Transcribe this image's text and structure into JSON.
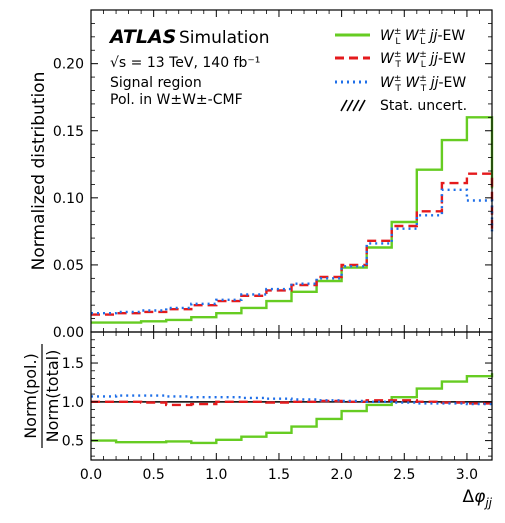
{
  "chart_data": [
    {
      "type": "line",
      "step": true,
      "ylabel": "Normalized distribution",
      "xlim": [
        0,
        3.2
      ],
      "ylim": [
        0,
        0.24
      ],
      "x_ticks": [
        "0.0",
        "0.5",
        "1.0",
        "1.5",
        "2.0",
        "2.5",
        "3.0"
      ],
      "y_ticks": [
        "0.00",
        "0.05",
        "0.10",
        "0.15",
        "0.20"
      ],
      "bin_edges": [
        0.0,
        0.2,
        0.4,
        0.6,
        0.8,
        1.0,
        1.2,
        1.4,
        1.6,
        1.8,
        2.0,
        2.2,
        2.4,
        2.6,
        2.8,
        3.0,
        3.2
      ],
      "annotation": {
        "experiment": "ATLAS",
        "label": "Simulation",
        "energy": "√s = 13 TeV, 140 fb⁻¹",
        "line2": "Signal region",
        "line3": "Pol. in W±W±-CMF"
      },
      "legend_placement": "top-right",
      "series": [
        {
          "name": "W_L W_L jj-EW",
          "legend_label": "W±LW±L jj-EW",
          "color": "#66cc22",
          "dash": "solid",
          "values": [
            0.007,
            0.007,
            0.008,
            0.009,
            0.011,
            0.014,
            0.018,
            0.023,
            0.03,
            0.038,
            0.048,
            0.063,
            0.082,
            0.121,
            0.143,
            0.16,
            0.107
          ]
        },
        {
          "name": "W_T W_L jj-EW",
          "legend_label": "W±TW±L jj-EW",
          "color": "#e41a1c",
          "dash": "dashed",
          "values": [
            0.013,
            0.014,
            0.015,
            0.017,
            0.02,
            0.023,
            0.027,
            0.031,
            0.035,
            0.041,
            0.05,
            0.068,
            0.079,
            0.09,
            0.111,
            0.118,
            0.075
          ]
        },
        {
          "name": "W_T W_T jj-EW",
          "legend_label": "W±TW±T jj-EW",
          "color": "#1f6fe8",
          "dash": "dotted",
          "values": [
            0.014,
            0.015,
            0.016,
            0.018,
            0.021,
            0.024,
            0.028,
            0.032,
            0.036,
            0.04,
            0.049,
            0.066,
            0.077,
            0.087,
            0.106,
            0.098,
            0.075
          ]
        }
      ],
      "stat_uncert": {
        "name": "Stat. uncert.",
        "values": []
      }
    },
    {
      "type": "line",
      "step": true,
      "xlabel": "Δφjj",
      "ylabel": "Norm(pol.) / Norm(total)",
      "ylabel_num": "Norm(pol.)",
      "ylabel_den": "Norm(total)",
      "xlim": [
        0,
        3.2
      ],
      "ylim": [
        0.25,
        1.9
      ],
      "x_ticks": [
        "0.0",
        "0.5",
        "1.0",
        "1.5",
        "2.0",
        "2.5",
        "3.0"
      ],
      "y_ticks": [
        "0.5",
        "1.0",
        "1.5"
      ],
      "reference_line": 1.0,
      "bin_edges": [
        0.0,
        0.2,
        0.4,
        0.6,
        0.8,
        1.0,
        1.2,
        1.4,
        1.6,
        1.8,
        2.0,
        2.2,
        2.4,
        2.6,
        2.8,
        3.0,
        3.2
      ],
      "series": [
        {
          "name": "W_L W_L jj-EW",
          "color": "#66cc22",
          "dash": "solid",
          "values": [
            0.5,
            0.48,
            0.48,
            0.49,
            0.47,
            0.51,
            0.55,
            0.6,
            0.68,
            0.78,
            0.88,
            0.96,
            1.06,
            1.17,
            1.26,
            1.33,
            1.37
          ]
        },
        {
          "name": "W_T W_L jj-EW",
          "color": "#e41a1c",
          "dash": "dashed",
          "values": [
            1.0,
            1.0,
            0.99,
            0.96,
            0.97,
            1.0,
            1.0,
            0.99,
            1.0,
            1.01,
            1.0,
            1.02,
            1.02,
            1.0,
            0.99,
            0.98,
            0.98
          ]
        },
        {
          "name": "W_T W_T jj-EW",
          "color": "#1f6fe8",
          "dash": "dotted",
          "values": [
            1.07,
            1.08,
            1.08,
            1.07,
            1.06,
            1.06,
            1.05,
            1.04,
            1.03,
            1.02,
            1.01,
            1.0,
            0.99,
            0.98,
            0.98,
            0.97,
            0.97
          ]
        }
      ]
    }
  ]
}
